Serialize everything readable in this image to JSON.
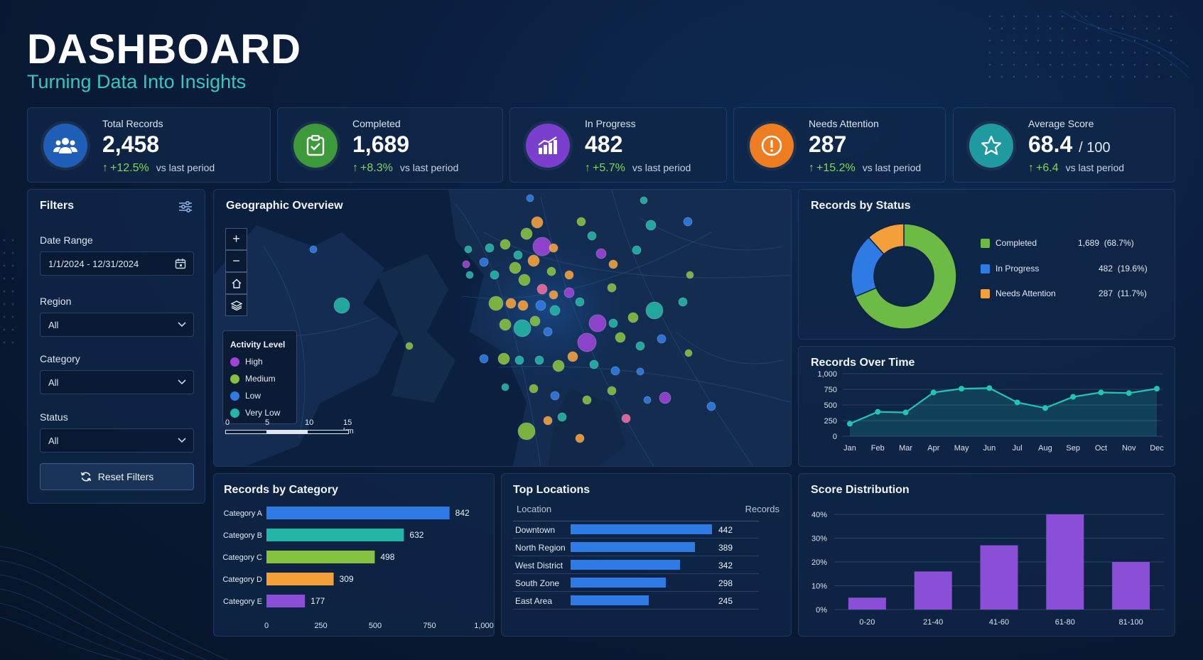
{
  "header": {
    "title": "DASHBOARD",
    "subtitle": "Turning Data Into Insights"
  },
  "kpis": [
    {
      "label": "Total Records",
      "value": "2,458",
      "suffix": "",
      "delta": "+12.5%",
      "vs": "vs last period",
      "icon": "users-icon",
      "color": "#1f5fb8"
    },
    {
      "label": "Completed",
      "value": "1,689",
      "suffix": "",
      "delta": "+8.3%",
      "vs": "vs last period",
      "icon": "clipboard-check-icon",
      "color": "#3c9a3a"
    },
    {
      "label": "In Progress",
      "value": "482",
      "suffix": "",
      "delta": "+5.7%",
      "vs": "vs last period",
      "icon": "bar-chart-icon",
      "color": "#7b3fd0"
    },
    {
      "label": "Needs Attention",
      "value": "287",
      "suffix": "",
      "delta": "+15.2%",
      "vs": "vs last period",
      "icon": "alert-circle-icon",
      "color": "#ee7d21"
    },
    {
      "label": "Average Score",
      "value": "68.4",
      "suffix": "/ 100",
      "delta": "+6.4",
      "vs": "vs last period",
      "icon": "star-icon",
      "color": "#1f9aa0"
    }
  ],
  "filters": {
    "title": "Filters",
    "date_label": "Date Range",
    "date_value": "1/1/2024 - 12/31/2024",
    "region_label": "Region",
    "region_value": "All",
    "category_label": "Category",
    "category_value": "All",
    "status_label": "Status",
    "status_value": "All",
    "reset_label": "Reset Filters"
  },
  "map": {
    "title": "Geographic Overview",
    "legend_title": "Activity Level",
    "legend": [
      {
        "label": "High",
        "color": "#9a45d6"
      },
      {
        "label": "Medium",
        "color": "#86c13f"
      },
      {
        "label": "Low",
        "color": "#2f7be6"
      },
      {
        "label": "Very Low",
        "color": "#23b5a6"
      }
    ],
    "scale_labels": [
      "0",
      "5",
      "10",
      "15 km"
    ]
  },
  "status": {
    "title": "Records by Status",
    "items": [
      {
        "label": "Completed",
        "value": "1,689",
        "pct": "(68.7%)",
        "n": 1689,
        "color": "#6cbb45"
      },
      {
        "label": "In Progress",
        "value": "482",
        "pct": "(19.6%)",
        "n": 482,
        "color": "#2f7be6"
      },
      {
        "label": "Needs Attention",
        "value": "287",
        "pct": "(11.7%)",
        "n": 287,
        "color": "#f4a03a"
      }
    ]
  },
  "chart_data": [
    {
      "type": "line",
      "title": "Records Over Time",
      "categories": [
        "Jan",
        "Feb",
        "Mar",
        "Apr",
        "May",
        "Jun",
        "Jul",
        "Aug",
        "Sep",
        "Oct",
        "Nov",
        "Dec"
      ],
      "values": [
        200,
        390,
        380,
        700,
        760,
        770,
        540,
        450,
        630,
        700,
        690,
        760
      ],
      "ylim": [
        0,
        1000
      ],
      "yticks": [
        "0",
        "250",
        "500",
        "750",
        "1,000"
      ],
      "ytick_values": [
        0,
        250,
        500,
        750,
        1000
      ],
      "color": "#23c4b8"
    },
    {
      "type": "bar",
      "title": "Records by Category",
      "orientation": "horizontal",
      "categories": [
        "Category A",
        "Category B",
        "Category C",
        "Category D",
        "Category E"
      ],
      "values": [
        842,
        632,
        498,
        309,
        177
      ],
      "labels": [
        "842",
        "632",
        "498",
        "309",
        "177"
      ],
      "colors": [
        "#2f7be6",
        "#23b5a6",
        "#86c13f",
        "#f4a03a",
        "#8a4fd6"
      ],
      "xlim": [
        0,
        1000
      ],
      "xticks": [
        "0",
        "250",
        "500",
        "750",
        "1,000"
      ],
      "xtick_values": [
        0,
        250,
        500,
        750,
        1000
      ]
    },
    {
      "type": "bar",
      "title": "Score Distribution",
      "categories": [
        "0-20",
        "21-40",
        "41-60",
        "61-80",
        "81-100"
      ],
      "values": [
        5,
        16,
        27,
        40,
        20
      ],
      "ylim": [
        0,
        40
      ],
      "yticks": [
        "0%",
        "10%",
        "20%",
        "30%",
        "40%"
      ],
      "ytick_values": [
        0,
        10,
        20,
        30,
        40
      ],
      "color": "#8a4fd6"
    },
    {
      "type": "bar",
      "title": "Top Locations",
      "orientation": "horizontal",
      "columns": [
        "Location",
        "Records"
      ],
      "categories": [
        "Downtown",
        "North Region",
        "West District",
        "South Zone",
        "East Area"
      ],
      "values": [
        442,
        389,
        342,
        298,
        245
      ],
      "labels": [
        "442",
        "389",
        "342",
        "298",
        "245"
      ],
      "color": "#2f7be6"
    }
  ]
}
